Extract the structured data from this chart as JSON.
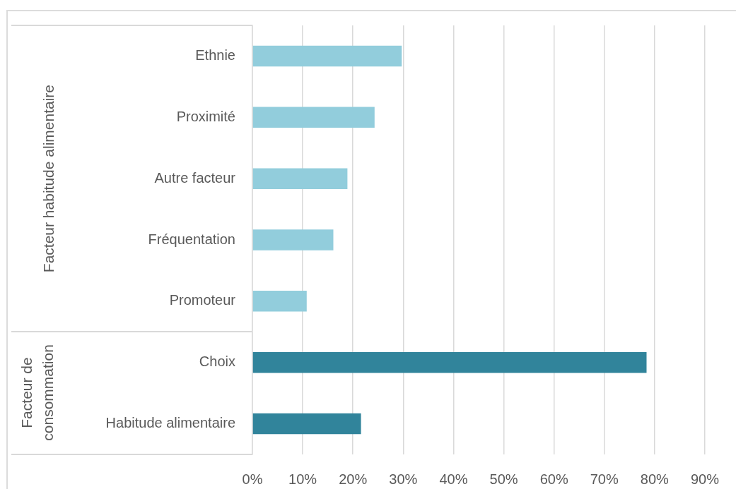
{
  "chart_data": {
    "type": "bar",
    "orientation": "horizontal",
    "categories": [
      "Ethnie",
      "Proximité",
      "Autre facteur",
      "Fréquentation",
      "Promoteur",
      "Choix",
      "Habitude alimentaire"
    ],
    "values": [
      29.7,
      24.3,
      18.9,
      16.1,
      10.8,
      78.4,
      21.6
    ],
    "colors": [
      "#92cddc",
      "#92cddc",
      "#92cddc",
      "#92cddc",
      "#92cddc",
      "#31849b",
      "#31849b"
    ],
    "annotations": [
      "Facteur habitude alimentaire",
      "Facteur de consommation"
    ],
    "xlim": [
      0,
      90
    ],
    "xticks": [
      {
        "value": 0,
        "label": "0%"
      },
      {
        "value": 10,
        "label": "10%"
      },
      {
        "value": 20,
        "label": "20%"
      },
      {
        "value": 30,
        "label": "30%"
      },
      {
        "value": 40,
        "label": "40%"
      },
      {
        "value": 50,
        "label": "50%"
      },
      {
        "value": 60,
        "label": "60%"
      },
      {
        "value": 70,
        "label": "70%"
      },
      {
        "value": 80,
        "label": "80%"
      },
      {
        "value": 90,
        "label": "90%"
      }
    ],
    "grid": "x"
  }
}
